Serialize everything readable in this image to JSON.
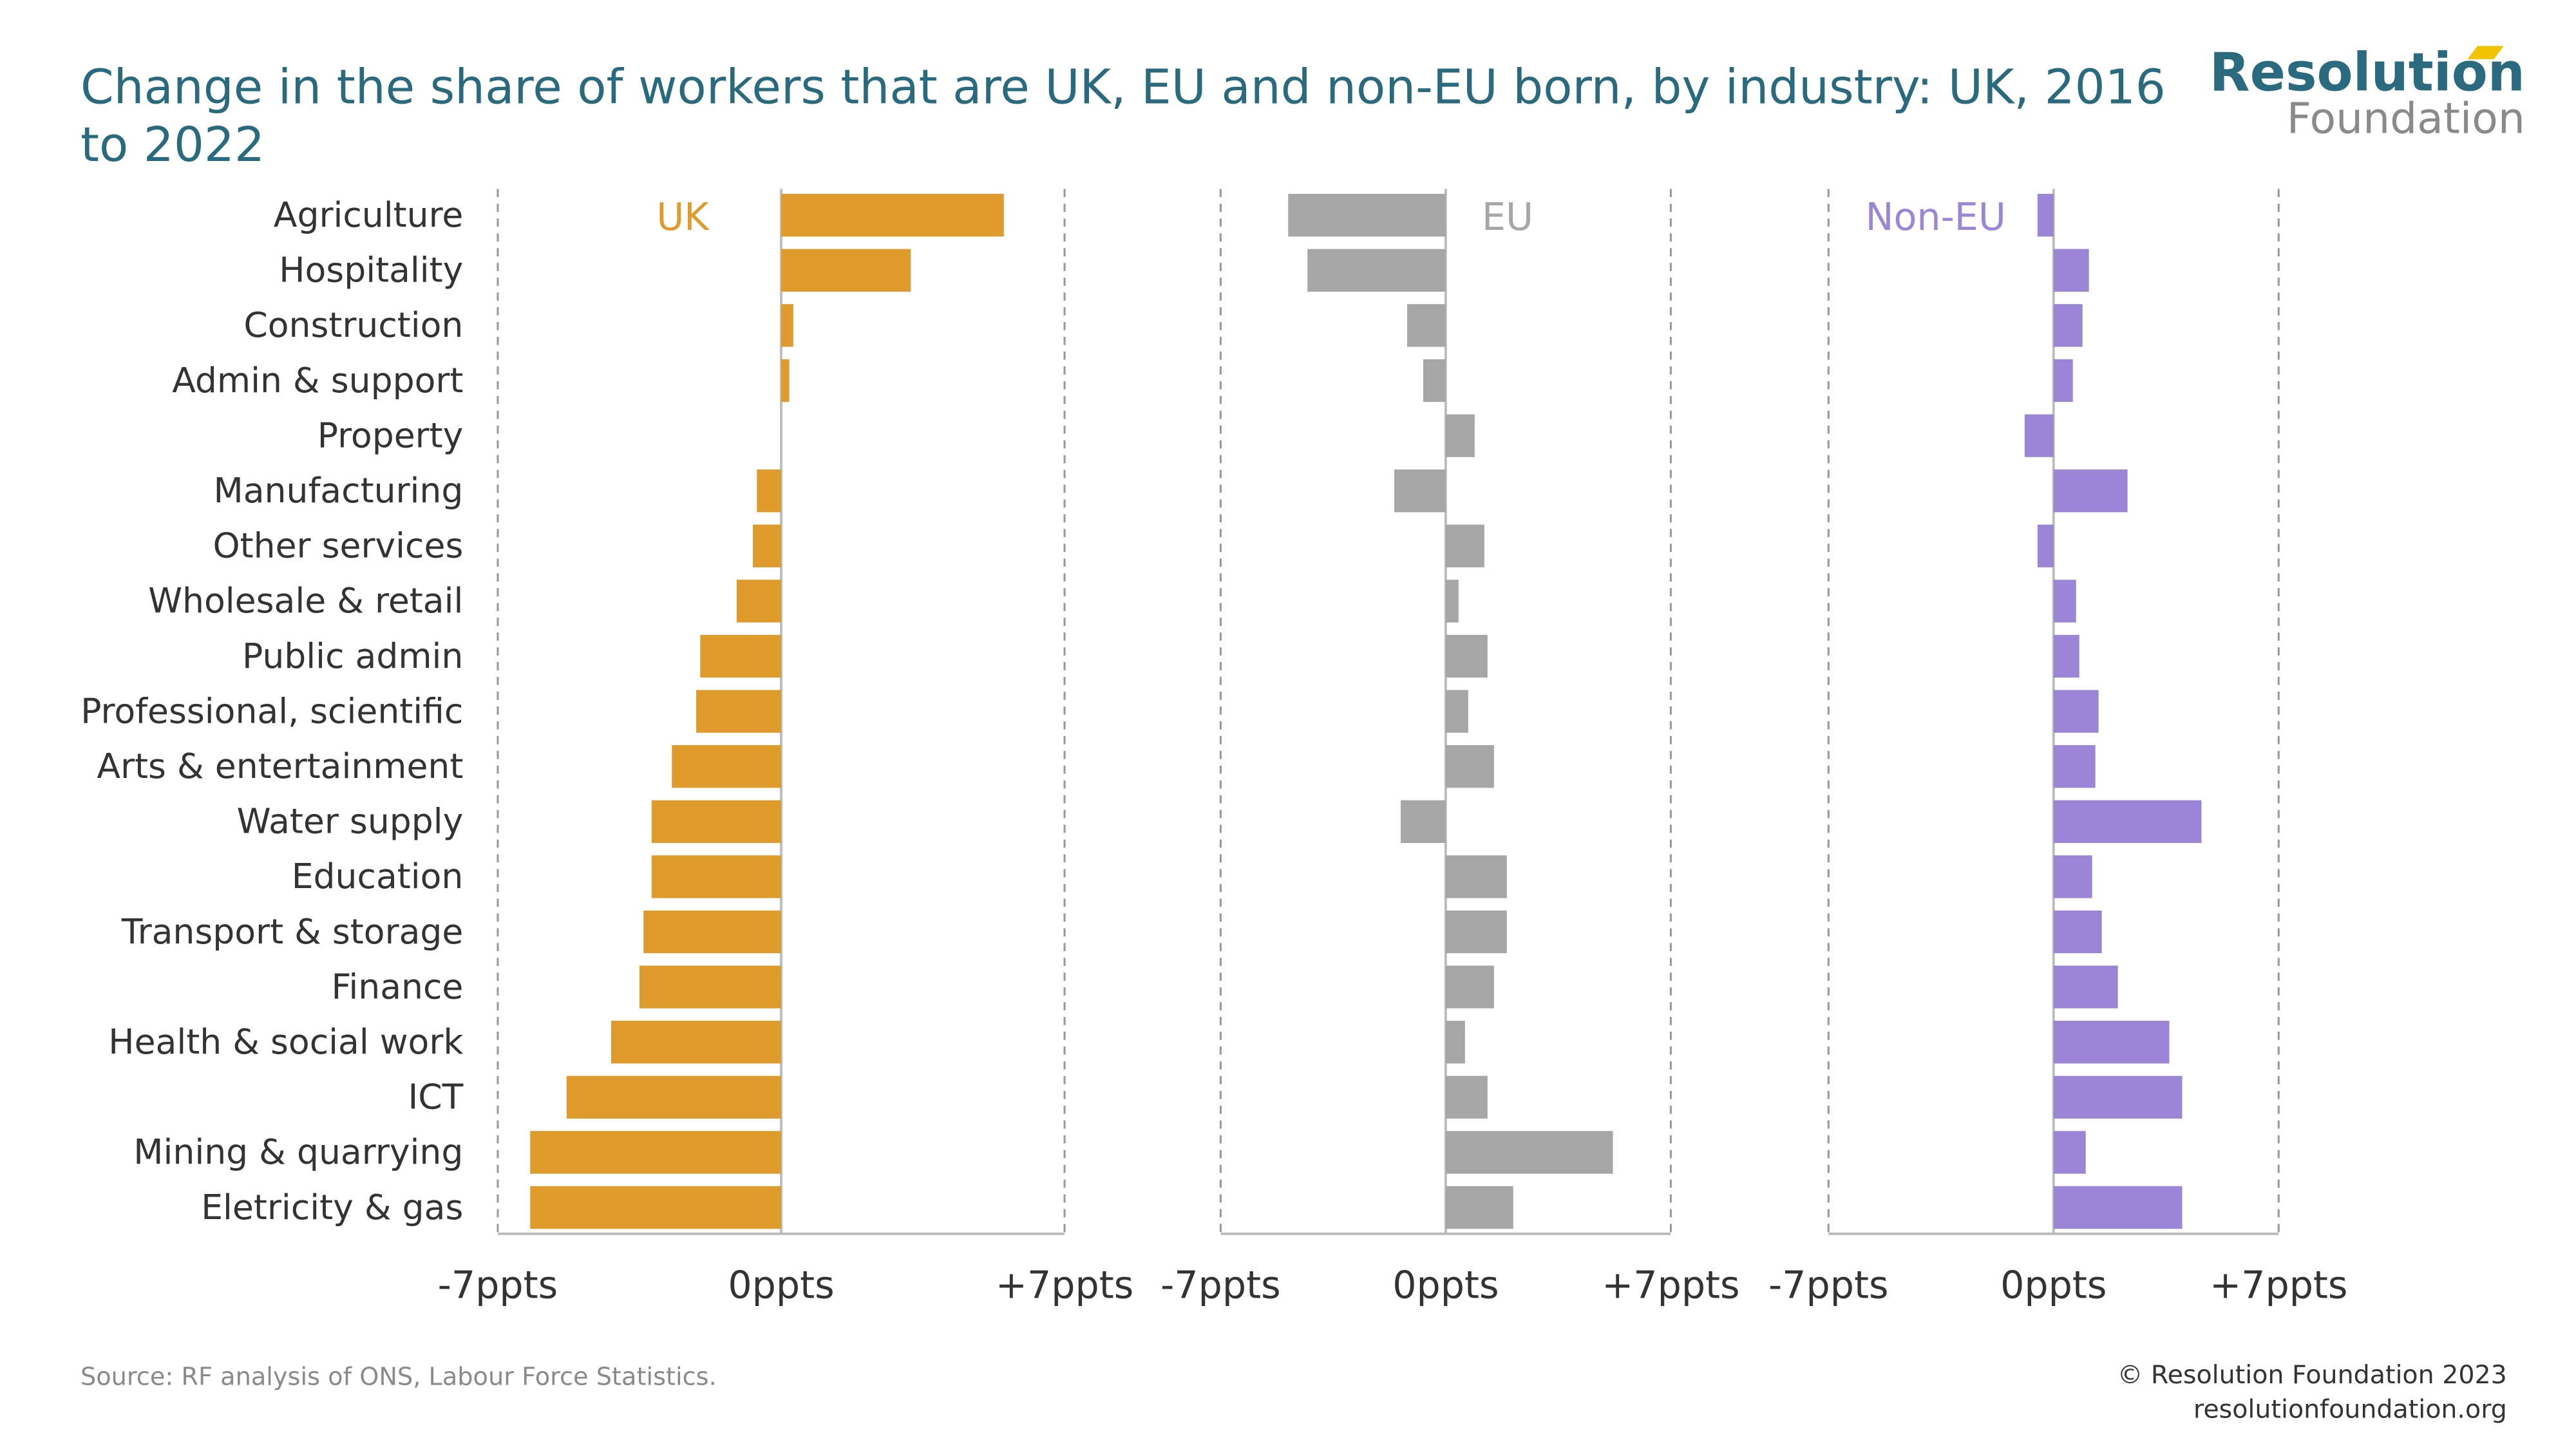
{
  "chart_data": {
    "type": "bar",
    "orientation": "horizontal",
    "layout": "panels",
    "title": "Change in the share of workers that are UK, EU and non-EU born, by industry: UK, 2016 to 2022",
    "categories": [
      "Agriculture",
      "Hospitality",
      "Construction",
      "Admin & support",
      "Property",
      "Manufacturing",
      "Other services",
      "Wholesale & retail",
      "Public admin",
      "Professional, scientific",
      "Arts & entertainment",
      "Water supply",
      "Education",
      "Transport & storage",
      "Finance",
      "Health & social work",
      "ICT",
      "Mining & quarrying",
      "Eletricity & gas"
    ],
    "series": [
      {
        "name": "UK",
        "color": "#e09b2d",
        "values": [
          5.5,
          3.2,
          0.3,
          0.2,
          0,
          -0.6,
          -0.7,
          -1.1,
          -2.0,
          -2.1,
          -2.7,
          -3.2,
          -3.2,
          -3.4,
          -3.5,
          -4.2,
          -5.3,
          -6.2,
          -6.2
        ]
      },
      {
        "name": "EU",
        "color": "#a6a6a6",
        "values": [
          -4.9,
          -4.3,
          -1.2,
          -0.7,
          0.9,
          -1.6,
          1.2,
          0.4,
          1.3,
          0.7,
          1.5,
          -1.4,
          1.9,
          1.9,
          1.5,
          0.6,
          1.3,
          5.2,
          2.1
        ]
      },
      {
        "name": "Non-EU",
        "color": "#9b85d6",
        "values": [
          -0.5,
          1.1,
          0.9,
          0.6,
          -0.9,
          2.3,
          -0.5,
          0.7,
          0.8,
          1.4,
          1.3,
          4.6,
          1.2,
          1.5,
          2.0,
          3.6,
          4.0,
          1.0,
          4.0
        ]
      }
    ],
    "xlim": [
      -7,
      7
    ],
    "xticks": [
      {
        "value": -7,
        "label": "-7ppts"
      },
      {
        "value": 0,
        "label": "0ppts"
      },
      {
        "value": 7,
        "label": "+7ppts"
      }
    ]
  },
  "logo": {
    "line1": "Resolution",
    "line2": "Foundation"
  },
  "source": "Source: RF analysis of ONS, Labour Force Statistics.",
  "copyright": "© Resolution Foundation 2023",
  "website": "resolutionfoundation.org"
}
